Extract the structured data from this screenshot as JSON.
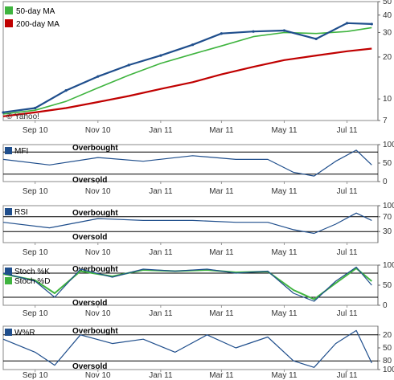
{
  "chart_data": [
    {
      "type": "line",
      "name_panel": "price",
      "legend": [
        "50-day MA",
        "200-day MA"
      ],
      "colors": {
        "price": "#1f4e8c",
        "ma50": "#3fb43f",
        "ma200": "#c00000"
      },
      "yticks": [
        50,
        40,
        30,
        20,
        10,
        7
      ],
      "ylim": [
        7,
        50
      ],
      "log_scale": true,
      "x": [
        "2010-08-01",
        "2010-09-01",
        "2010-10-01",
        "2010-11-01",
        "2010-12-01",
        "2011-01-01",
        "2011-02-01",
        "2011-03-01",
        "2011-04-01",
        "2011-05-01",
        "2011-06-01",
        "2011-07-01",
        "2011-07-25"
      ],
      "price": [
        8.0,
        8.6,
        11.5,
        14.5,
        17.5,
        20.5,
        24.5,
        29.5,
        30.5,
        31.0,
        27.0,
        35.0,
        34.5
      ],
      "ma50": [
        7.8,
        8.3,
        9.6,
        12.0,
        14.8,
        18.0,
        21.0,
        24.0,
        28.0,
        30.0,
        29.5,
        30.5,
        32.5
      ],
      "ma200": [
        7.5,
        8.0,
        8.6,
        9.5,
        10.5,
        11.8,
        13.2,
        15.0,
        17.0,
        19.0,
        20.5,
        22.0,
        23.0
      ],
      "watermark": "© Yahoo!"
    },
    {
      "type": "line",
      "name_panel": "mfi",
      "legend": [
        "MFI"
      ],
      "yticks": [
        100,
        50,
        0
      ],
      "ylim": [
        0,
        100
      ],
      "zones": {
        "overbought": 80,
        "oversold": 20,
        "overbought_label": "Overbought",
        "oversold_label": "Oversold"
      },
      "x": [
        "2010-08-01",
        "2010-09-15",
        "2010-11-01",
        "2010-12-15",
        "2011-02-01",
        "2011-03-15",
        "2011-04-15",
        "2011-05-10",
        "2011-05-30",
        "2011-06-20",
        "2011-07-10",
        "2011-07-25"
      ],
      "y": [
        60,
        45,
        65,
        55,
        70,
        60,
        60,
        25,
        15,
        55,
        85,
        45
      ]
    },
    {
      "type": "line",
      "name_panel": "rsi",
      "legend": [
        "RSI"
      ],
      "yticks": [
        100,
        70,
        30
      ],
      "ylim": [
        0,
        100
      ],
      "zones": {
        "overbought": 70,
        "oversold": 30,
        "overbought_label": "Overbought",
        "oversold_label": "Oversold"
      },
      "x": [
        "2010-08-01",
        "2010-09-15",
        "2010-11-01",
        "2010-12-15",
        "2011-02-01",
        "2011-03-15",
        "2011-04-15",
        "2011-05-10",
        "2011-05-30",
        "2011-06-20",
        "2011-07-10",
        "2011-07-25"
      ],
      "y": [
        55,
        40,
        65,
        60,
        60,
        55,
        55,
        35,
        25,
        50,
        80,
        60
      ]
    },
    {
      "type": "line",
      "name_panel": "stoch",
      "legend": [
        "Stoch %K",
        "Stoch %D"
      ],
      "colors": {
        "k": "#1f4e8c",
        "d": "#3fb43f"
      },
      "yticks": [
        100,
        50,
        0
      ],
      "ylim": [
        0,
        100
      ],
      "zones": {
        "overbought": 80,
        "oversold": 20,
        "overbought_label": "Overbought",
        "oversold_label": "Oversold"
      },
      "x": [
        "2010-08-01",
        "2010-09-01",
        "2010-09-20",
        "2010-10-15",
        "2010-11-15",
        "2010-12-15",
        "2011-01-15",
        "2011-02-15",
        "2011-03-15",
        "2011-04-15",
        "2011-05-10",
        "2011-05-30",
        "2011-06-20",
        "2011-07-10",
        "2011-07-25"
      ],
      "k": [
        80,
        60,
        20,
        90,
        70,
        90,
        85,
        90,
        80,
        85,
        30,
        10,
        60,
        95,
        50
      ],
      "d": [
        78,
        62,
        30,
        85,
        72,
        88,
        85,
        88,
        82,
        84,
        38,
        15,
        55,
        92,
        60
      ]
    },
    {
      "type": "line",
      "name_panel": "wr",
      "legend": [
        "W%R"
      ],
      "yticks": [
        20,
        50,
        80,
        100
      ],
      "ylim": [
        0,
        100
      ],
      "inverted": true,
      "zones": {
        "overbought": 20,
        "oversold": 80,
        "overbought_label": "Overbought",
        "oversold_label": "Oversold"
      },
      "x": [
        "2010-08-01",
        "2010-09-01",
        "2010-09-20",
        "2010-10-15",
        "2010-11-15",
        "2010-12-15",
        "2011-01-15",
        "2011-02-15",
        "2011-03-15",
        "2011-04-15",
        "2011-05-10",
        "2011-05-30",
        "2011-06-20",
        "2011-07-10",
        "2011-07-25"
      ],
      "y": [
        30,
        60,
        90,
        20,
        40,
        30,
        60,
        20,
        50,
        25,
        80,
        95,
        40,
        10,
        85
      ]
    }
  ],
  "x_axis": {
    "start": "2010-08-01",
    "end": "2011-07-31",
    "labels": [
      {
        "date": "2010-09-01",
        "text": "Sep 10"
      },
      {
        "date": "2010-11-01",
        "text": "Nov 10"
      },
      {
        "date": "2011-01-01",
        "text": "Jan 11"
      },
      {
        "date": "2011-03-01",
        "text": "Mar 11"
      },
      {
        "date": "2011-05-01",
        "text": "May 11"
      },
      {
        "date": "2011-07-01",
        "text": "Jul 11"
      }
    ]
  }
}
